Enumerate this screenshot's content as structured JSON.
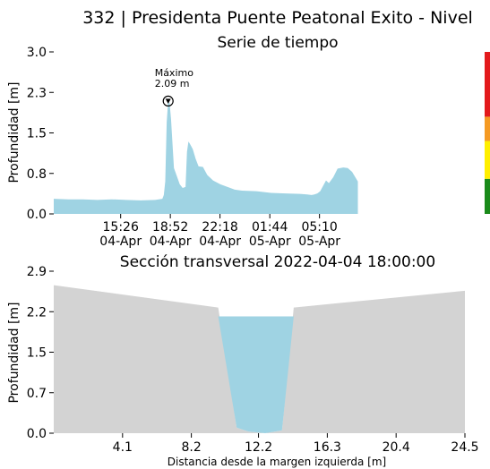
{
  "title": "332 | Presidenta Puente Peatonal Exito - Nivel",
  "colors": {
    "water": "#9fd3e3",
    "terrain": "#d3d3d3",
    "alert_red": "#e31a1c",
    "alert_orange": "#f59a23",
    "alert_yellow": "#ffef00",
    "alert_green": "#1a8a1a"
  },
  "chart_data": [
    {
      "type": "area",
      "title": "Serie de tiempo",
      "ylabel": "Profundidad [m]",
      "xlabel": "",
      "ylim": [
        0.0,
        3.0
      ],
      "yticks": [
        "0.0",
        "0.8",
        "1.5",
        "2.3",
        "3.0"
      ],
      "ytick_values": [
        0.0,
        0.75,
        1.5,
        2.25,
        3.0
      ],
      "xlim_hours": [
        0,
        28.33
      ],
      "xticks": [
        {
          "time": "15:26",
          "date": "04-Apr",
          "h": 4.62
        },
        {
          "time": "18:52",
          "date": "04-Apr",
          "h": 8.05
        },
        {
          "time": "22:18",
          "date": "04-Apr",
          "h": 11.48
        },
        {
          "time": "01:44",
          "date": "05-Apr",
          "h": 14.92
        },
        {
          "time": "05:10",
          "date": "05-Apr",
          "h": 18.35
        }
      ],
      "annotation": {
        "label": "Máximo",
        "value_text": "2.09 m"
      },
      "alert_bands": [
        {
          "color": "green",
          "from": 0.0,
          "to": 0.65
        },
        {
          "color": "yellow",
          "from": 0.65,
          "to": 1.35
        },
        {
          "color": "orange",
          "from": 1.35,
          "to": 1.8
        },
        {
          "color": "red",
          "from": 1.8,
          "to": 3.0
        }
      ],
      "series": [
        {
          "name": "",
          "x": [
            0,
            1,
            2,
            3,
            4,
            5,
            6,
            7,
            7.5,
            7.6,
            7.7,
            7.8,
            7.9,
            8.0,
            8.1,
            8.2,
            8.3,
            8.5,
            8.7,
            8.9,
            9.1,
            9.2,
            9.3,
            9.4,
            9.6,
            9.8,
            10.0,
            10.3,
            10.6,
            11.0,
            11.5,
            12.0,
            12.5,
            13.0,
            14.0,
            15.0,
            16.0,
            17.0,
            17.5,
            17.8,
            18.0,
            18.2,
            18.4,
            18.6,
            18.8,
            19.0,
            19.3,
            19.6,
            20.0,
            20.3,
            20.6,
            21.0
          ],
          "y": [
            0.28,
            0.27,
            0.27,
            0.26,
            0.27,
            0.26,
            0.25,
            0.26,
            0.28,
            0.35,
            0.6,
            1.7,
            2.09,
            2.05,
            1.75,
            1.3,
            0.85,
            0.7,
            0.55,
            0.48,
            0.5,
            1.15,
            1.34,
            1.3,
            1.2,
            1.02,
            0.88,
            0.87,
            0.72,
            0.62,
            0.55,
            0.5,
            0.45,
            0.43,
            0.42,
            0.39,
            0.38,
            0.37,
            0.36,
            0.35,
            0.36,
            0.38,
            0.42,
            0.52,
            0.62,
            0.57,
            0.68,
            0.84,
            0.86,
            0.85,
            0.78,
            0.6
          ]
        }
      ]
    },
    {
      "type": "area",
      "title": "Sección transversal 2022-04-04 18:00:00",
      "xlabel": "Distancia desde la margen izquierda [m]",
      "ylabel": "Profundidad [m]",
      "xlim": [
        0,
        24.5
      ],
      "ylim": [
        0.0,
        2.9
      ],
      "xticks": [
        4.1,
        8.2,
        12.2,
        16.3,
        20.4,
        24.5
      ],
      "xtick_labels": [
        "4.1",
        "8.2",
        "12.2",
        "16.3",
        "20.4",
        "24.5"
      ],
      "yticks": [
        "0.0",
        "0.7",
        "1.5",
        "2.2",
        "2.9"
      ],
      "ytick_values": [
        0.0,
        0.725,
        1.45,
        2.175,
        2.9
      ],
      "water_level": 2.09,
      "series": [
        {
          "name": "",
          "x": [
            0,
            9.8,
            10.9,
            11.6,
            12.6,
            13.6,
            14.3,
            24.5
          ],
          "y": [
            2.65,
            2.25,
            0.1,
            0.03,
            0.0,
            0.05,
            2.25,
            2.55
          ]
        }
      ]
    }
  ]
}
